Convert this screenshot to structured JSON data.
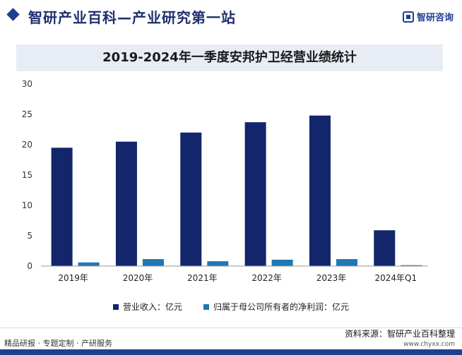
{
  "header": {
    "site_title": "智研产业百科—产业研究第一站",
    "brand_name": "智研咨询"
  },
  "chart_data": {
    "type": "bar",
    "title": "2019-2024年一季度安邦护卫经营业绩统计",
    "categories": [
      "2019年",
      "2020年",
      "2021年",
      "2022年",
      "2023年",
      "2024年Q1"
    ],
    "series": [
      {
        "name": "营业收入：亿元",
        "color": "#13266b",
        "values": [
          19.5,
          20.5,
          22.0,
          23.7,
          24.8,
          5.9
        ]
      },
      {
        "name": "归属于母公司所有者的净利润：亿元",
        "color": "#1f77b4",
        "values": [
          0.6,
          1.15,
          0.8,
          1.05,
          1.15,
          0.15
        ]
      }
    ],
    "ylim": [
      0,
      30
    ],
    "yticks": [
      0,
      5,
      10,
      15,
      20,
      25,
      30
    ],
    "legend_position": "bottom",
    "grid": false
  },
  "footer": {
    "left_text": "精品研报 · 专题定制 · 产研服务",
    "source_text": "资料来源：智研产业百科整理",
    "url": "www.chyxx.com"
  }
}
